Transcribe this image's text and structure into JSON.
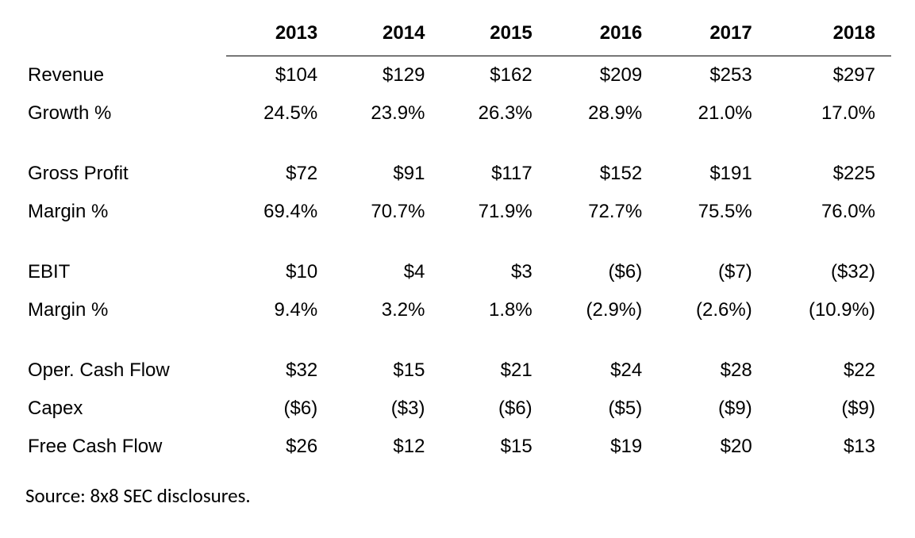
{
  "type": "table",
  "columns": [
    "2013",
    "2014",
    "2015",
    "2016",
    "2017",
    "2018"
  ],
  "column_widths_pct": [
    22,
    13,
    13,
    13,
    13,
    13,
    13
  ],
  "column_alignment": [
    "left",
    "right",
    "right",
    "right",
    "right",
    "right",
    "right"
  ],
  "background_color": "#ffffff",
  "text_color": "#000000",
  "header_border_color": "#000000",
  "fontsize": 24,
  "header_fontsize": 24,
  "header_fontweight": "bold",
  "source_fontsize": 25,
  "groups": [
    {
      "rows": [
        {
          "label": "Revenue",
          "values": [
            "$104",
            "$129",
            "$162",
            "$209",
            "$253",
            "$297"
          ]
        },
        {
          "label": "Growth %",
          "values": [
            "24.5%",
            "23.9%",
            "26.3%",
            "28.9%",
            "21.0%",
            "17.0%"
          ]
        }
      ]
    },
    {
      "rows": [
        {
          "label": "Gross Profit",
          "values": [
            "$72",
            "$91",
            "$117",
            "$152",
            "$191",
            "$225"
          ]
        },
        {
          "label": "Margin %",
          "values": [
            "69.4%",
            "70.7%",
            "71.9%",
            "72.7%",
            "75.5%",
            "76.0%"
          ]
        }
      ]
    },
    {
      "rows": [
        {
          "label": "EBIT",
          "values": [
            "$10",
            "$4",
            "$3",
            "($6)",
            "($7)",
            "($32)"
          ]
        },
        {
          "label": "Margin %",
          "values": [
            "9.4%",
            "3.2%",
            "1.8%",
            "(2.9%)",
            "(2.6%)",
            "(10.9%)"
          ]
        }
      ]
    },
    {
      "rows": [
        {
          "label": "Oper. Cash Flow",
          "values": [
            "$32",
            "$15",
            "$21",
            "$24",
            "$28",
            "$22"
          ]
        },
        {
          "label": "Capex",
          "values": [
            "($6)",
            "($3)",
            "($6)",
            "($5)",
            "($9)",
            "($9)"
          ]
        },
        {
          "label": "Free Cash Flow",
          "values": [
            "$26",
            "$12",
            "$15",
            "$19",
            "$20",
            "$13"
          ]
        }
      ]
    }
  ],
  "source_note": "Source: 8x8 SEC disclosures."
}
